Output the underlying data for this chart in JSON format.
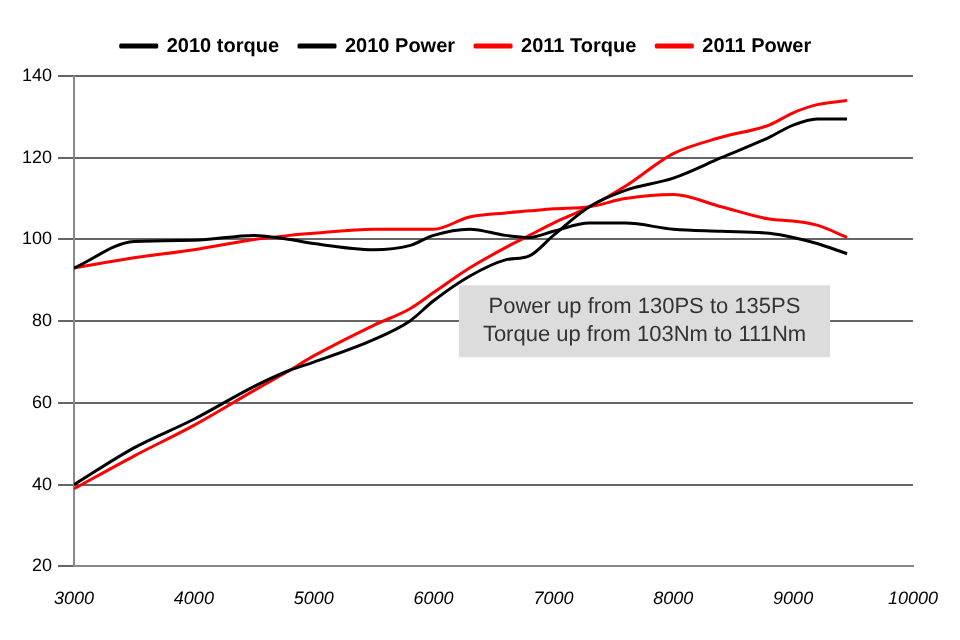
{
  "chart_data": {
    "type": "line",
    "x": [
      3000,
      3500,
      4000,
      4500,
      4800,
      5000,
      5500,
      5800,
      6000,
      6300,
      6600,
      6800,
      7000,
      7300,
      7600,
      8000,
      8400,
      8800,
      9000,
      9200,
      9450
    ],
    "series": [
      {
        "name": "2010 torque",
        "color": "#000000",
        "values": [
          93,
          99.5,
          99.8,
          101,
          100,
          99,
          97.5,
          98.5,
          101,
          102.5,
          101,
          100.5,
          102,
          104,
          104,
          102.5,
          102,
          101.5,
          100.5,
          99,
          96.5
        ]
      },
      {
        "name": "2010 Power",
        "color": "#000000",
        "values": [
          40,
          49,
          56,
          64,
          68,
          70,
          75.5,
          80,
          85,
          91,
          95,
          96,
          101,
          108,
          112,
          115,
          120,
          125,
          128,
          129.5,
          129.5
        ]
      },
      {
        "name": "2011 Torque",
        "color": "#ff0000",
        "values": [
          93,
          95.5,
          97.5,
          100,
          101,
          101.5,
          102.5,
          102.5,
          102.5,
          105.5,
          106.5,
          107,
          107.5,
          108,
          110,
          111,
          108,
          105,
          104.5,
          103.5,
          100.5
        ]
      },
      {
        "name": "2011 Power",
        "color": "#ff0000",
        "values": [
          39,
          47,
          54.5,
          63,
          68,
          71.5,
          79,
          83,
          87,
          93,
          98,
          101,
          104,
          108,
          113,
          121,
          125,
          128,
          131,
          133,
          134
        ]
      }
    ],
    "xlim": [
      3000,
      10000
    ],
    "xticks": [
      3000,
      4000,
      5000,
      6000,
      7000,
      8000,
      9000,
      10000
    ],
    "ylim": [
      20,
      140
    ],
    "yticks": [
      20,
      40,
      60,
      80,
      100,
      120,
      140
    ],
    "grid": "y",
    "legend": "top",
    "marker": "none",
    "line_style": "solid",
    "annotations": [
      "Power up from 130PS to 135PS",
      "Torque up from 103Nm to 111Nm"
    ]
  }
}
